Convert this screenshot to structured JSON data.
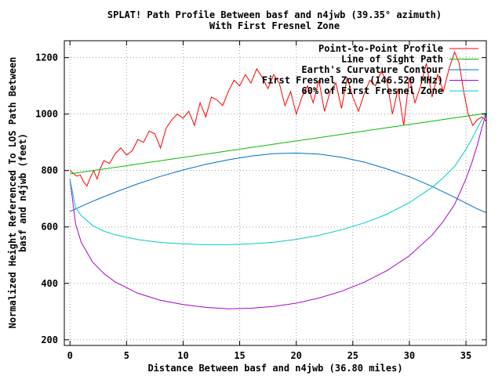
{
  "chart_data": {
    "type": "line",
    "title": "SPLAT! Path Profile Between basf and n4jwb (39.35° azimuth)",
    "subtitle": "With First Fresnel Zone",
    "xlabel": "Distance Between basf and n4jwb (36.80 miles)",
    "ylabel_line1": "Normalized Height Referenced To LOS Path Between",
    "ylabel_line2": "basf and n4jwb (feet)",
    "xlim": [
      -0.5,
      36.8
    ],
    "ylim": [
      180,
      1260
    ],
    "xticks": [
      0,
      5,
      10,
      15,
      20,
      25,
      30,
      35
    ],
    "yticks": [
      200,
      400,
      600,
      800,
      1000,
      1200
    ],
    "grid": true,
    "legend_position": "top-right",
    "series": [
      {
        "name": "Point-to-Point Profile",
        "color": "#ff0000",
        "x": [
          0,
          0.3,
          0.6,
          0.9,
          1.2,
          1.5,
          1.8,
          2.1,
          2.4,
          2.7,
          3.0,
          3.5,
          4.0,
          4.5,
          5.0,
          5.5,
          6.0,
          6.5,
          7.0,
          7.5,
          8.0,
          8.5,
          9.0,
          9.5,
          10.0,
          10.5,
          11.0,
          11.5,
          12.0,
          12.5,
          13.0,
          13.5,
          14.0,
          14.5,
          15.0,
          15.5,
          16.0,
          16.5,
          17.0,
          17.5,
          18.0,
          18.5,
          19.0,
          19.5,
          20.0,
          20.5,
          21.0,
          21.5,
          22.0,
          22.5,
          23.0,
          23.5,
          24.0,
          24.5,
          25.0,
          25.5,
          26.0,
          26.5,
          27.0,
          27.5,
          28.0,
          28.5,
          29.0,
          29.5,
          30.0,
          30.5,
          31.0,
          31.5,
          32.0,
          32.5,
          33.0,
          33.5,
          34.0,
          34.4,
          34.8,
          35.2,
          35.6,
          36.0,
          36.4,
          36.8
        ],
        "values": [
          800,
          790,
          780,
          785,
          760,
          745,
          775,
          800,
          770,
          810,
          835,
          825,
          860,
          880,
          855,
          870,
          910,
          900,
          940,
          930,
          880,
          950,
          980,
          1000,
          985,
          1010,
          960,
          1040,
          990,
          1060,
          1050,
          1030,
          1080,
          1120,
          1100,
          1140,
          1110,
          1160,
          1130,
          1090,
          1140,
          1110,
          1030,
          1080,
          1000,
          1060,
          1100,
          1040,
          1120,
          1010,
          1080,
          1110,
          1020,
          1130,
          1060,
          1010,
          1070,
          1120,
          1100,
          1150,
          1120,
          1000,
          1090,
          960,
          1130,
          1040,
          1100,
          1180,
          1060,
          1140,
          1080,
          1160,
          1220,
          1180,
          1080,
          1000,
          960,
          980,
          990,
          975
        ]
      },
      {
        "name": "Line of Sight Path",
        "color": "#00bb00",
        "x": [
          0,
          36.8
        ],
        "values": [
          788,
          1003
        ]
      },
      {
        "name": "Earth's Curvature Contour",
        "color": "#0070c0",
        "x": [
          0,
          2,
          4,
          6,
          8,
          10,
          12,
          14,
          16,
          18,
          20,
          22,
          24,
          26,
          28,
          30,
          32,
          34,
          36,
          36.8
        ],
        "values": [
          655,
          691,
          723,
          753,
          779,
          802,
          822,
          838,
          851,
          860,
          862,
          858,
          847,
          830,
          806,
          778,
          744,
          705,
          664,
          651
        ]
      },
      {
        "name": "First Fresnel Zone (146.520 MHz)",
        "color": "#aa00cc",
        "x": [
          0,
          0.5,
          1,
          2,
          3,
          4,
          6,
          8,
          10,
          12,
          14,
          16,
          18,
          20,
          22,
          24,
          26,
          28,
          30,
          32,
          33,
          34,
          35,
          35.5,
          36,
          36.4,
          36.8
        ],
        "values": [
          770,
          610,
          545,
          475,
          435,
          405,
          365,
          340,
          325,
          315,
          310,
          312,
          318,
          330,
          348,
          372,
          404,
          445,
          498,
          571,
          620,
          680,
          770,
          825,
          890,
          950,
          1003
        ]
      },
      {
        "name": "60% of First Fresnel Zone",
        "color": "#00cccc",
        "x": [
          0,
          0.5,
          1,
          2,
          3,
          4,
          6,
          8,
          10,
          12,
          14,
          16,
          18,
          20,
          22,
          24,
          26,
          28,
          30,
          32,
          33,
          34,
          35,
          35.5,
          36,
          36.4,
          36.8
        ],
        "values": [
          770,
          668,
          640,
          605,
          585,
          572,
          555,
          545,
          540,
          537,
          537,
          540,
          546,
          556,
          570,
          590,
          614,
          645,
          686,
          740,
          775,
          815,
          875,
          910,
          950,
          980,
          1003
        ]
      }
    ]
  }
}
